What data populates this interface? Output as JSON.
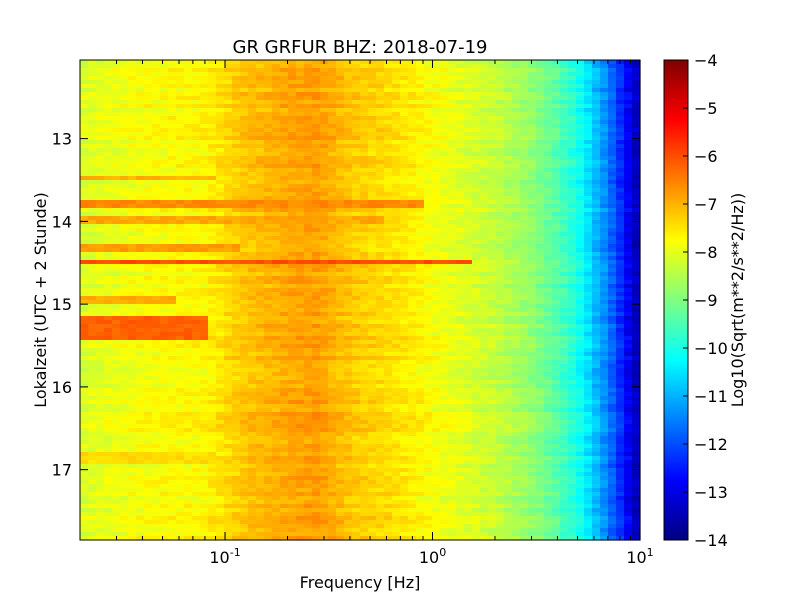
{
  "chart_data": {
    "type": "heatmap",
    "title": "GR GRFUR BHZ: 2018-07-19",
    "xlabel": "Frequency [Hz]",
    "ylabel": "Lokalzeit (UTC + 2 Stunde)",
    "x_scale": "log",
    "xlim": [
      0.02,
      10
    ],
    "xticks": [
      {
        "value": 0.1,
        "base": "10",
        "exp": "-1"
      },
      {
        "value": 1,
        "base": "10",
        "exp": "0"
      },
      {
        "value": 10,
        "base": "10",
        "exp": "1"
      }
    ],
    "ylim": [
      12.05,
      17.85
    ],
    "y_inverted": true,
    "yticks": [
      13,
      14,
      15,
      16,
      17
    ],
    "yticklabels": [
      "13",
      "14",
      "15",
      "16",
      "17"
    ],
    "colorbar": {
      "label": "Log10(Sqrt(m**2/s**2/Hz))",
      "min": -14,
      "max": -4,
      "ticks": [
        -4,
        -5,
        -6,
        -7,
        -8,
        -9,
        -10,
        -11,
        -12,
        -13,
        -14
      ],
      "ticklabels": [
        "−4",
        "−5",
        "−6",
        "−7",
        "−8",
        "−9",
        "−10",
        "−11",
        "−12",
        "−13",
        "−14"
      ],
      "colormap": "jet"
    },
    "frequency_profile": [
      {
        "f": 0.02,
        "v": -8.1
      },
      {
        "f": 0.04,
        "v": -7.8
      },
      {
        "f": 0.08,
        "v": -7.7
      },
      {
        "f": 0.12,
        "v": -7.2
      },
      {
        "f": 0.2,
        "v": -6.9
      },
      {
        "f": 0.28,
        "v": -6.8
      },
      {
        "f": 0.4,
        "v": -7.2
      },
      {
        "f": 0.7,
        "v": -7.5
      },
      {
        "f": 1.0,
        "v": -7.8
      },
      {
        "f": 2.0,
        "v": -8.3
      },
      {
        "f": 3.0,
        "v": -8.8
      },
      {
        "f": 4.0,
        "v": -9.4
      },
      {
        "f": 5.0,
        "v": -10.0
      },
      {
        "f": 6.0,
        "v": -10.8
      },
      {
        "f": 7.0,
        "v": -11.5
      },
      {
        "f": 8.0,
        "v": -12.3
      },
      {
        "f": 9.0,
        "v": -13.0
      },
      {
        "f": 10.0,
        "v": -13.6
      }
    ],
    "events": [
      {
        "hour_start": 13.45,
        "hour_end": 13.5,
        "f_max": 0.09,
        "v": -7.0
      },
      {
        "hour_start": 13.75,
        "hour_end": 13.8,
        "f_max": 0.9,
        "v": -6.6
      },
      {
        "hour_start": 13.95,
        "hour_end": 14.0,
        "f_max": 0.6,
        "v": -6.9
      },
      {
        "hour_start": 14.25,
        "hour_end": 14.35,
        "f_max": 0.12,
        "v": -6.8
      },
      {
        "hour_start": 14.45,
        "hour_end": 14.5,
        "f_max": 1.6,
        "v": -6.0
      },
      {
        "hour_start": 14.9,
        "hour_end": 15.0,
        "f_max": 0.06,
        "v": -6.9
      },
      {
        "hour_start": 15.15,
        "hour_end": 15.4,
        "f_max": 0.085,
        "v": -6.2
      },
      {
        "hour_start": 16.8,
        "hour_end": 16.9,
        "f_max": 0.09,
        "v": -7.4
      }
    ]
  }
}
